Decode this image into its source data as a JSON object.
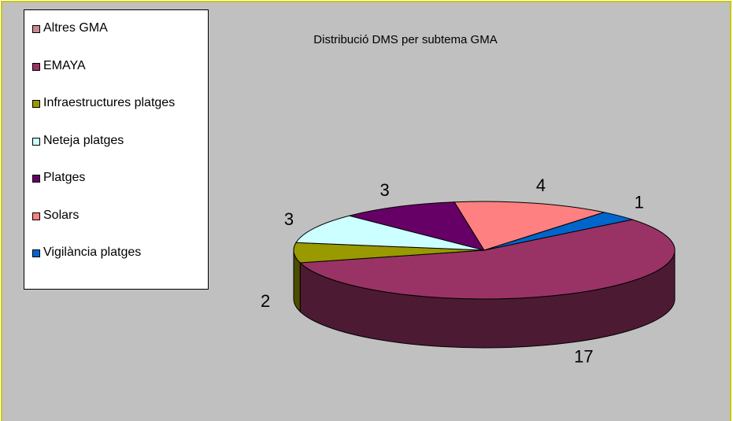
{
  "chart_data": {
    "type": "pie3d",
    "title": "Distribució DMS per subtema GMA",
    "categories": [
      "Altres GMA",
      "EMAYA",
      "Infraestructures platges",
      "Neteja platges",
      "Platges",
      "Solars",
      "Vigilància platges"
    ],
    "values": [
      0,
      17,
      2,
      3,
      3,
      4,
      1
    ],
    "colors": [
      "#c88a94",
      "#993366",
      "#999900",
      "#ccffff",
      "#660066",
      "#ff8080",
      "#0066cc"
    ],
    "legend": "left"
  }
}
